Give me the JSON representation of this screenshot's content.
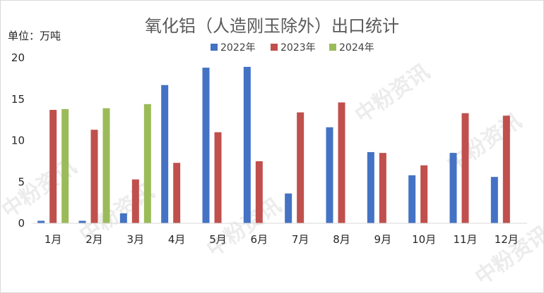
{
  "chart_data": {
    "type": "bar",
    "title": "氧化铝（人造刚玉除外）出口统计",
    "unit_label": "单位：万吨",
    "categories": [
      "1月",
      "2月",
      "3月",
      "4月",
      "5月",
      "6月",
      "7月",
      "8月",
      "9月",
      "10月",
      "11月",
      "12月"
    ],
    "series": [
      {
        "name": "2022年",
        "color": "#4472c4",
        "values": [
          0.3,
          0.3,
          1.2,
          16.7,
          18.8,
          18.9,
          3.6,
          11.6,
          8.6,
          5.8,
          8.5,
          5.6
        ]
      },
      {
        "name": "2023年",
        "color": "#c0504d",
        "values": [
          13.7,
          11.3,
          5.3,
          7.3,
          11.0,
          7.5,
          13.4,
          14.6,
          8.5,
          7.0,
          13.3,
          13.0
        ]
      },
      {
        "name": "2024年",
        "color": "#9bbb59",
        "values": [
          13.8,
          13.9,
          14.4,
          null,
          null,
          null,
          null,
          null,
          null,
          null,
          null,
          null
        ]
      }
    ],
    "ylim": [
      0,
      20
    ],
    "yticks": [
      0,
      5,
      10,
      15,
      20
    ],
    "grid": false,
    "legend_position": "top-center"
  },
  "watermark": {
    "text": "中粉资讯",
    "color": "#ececec"
  }
}
